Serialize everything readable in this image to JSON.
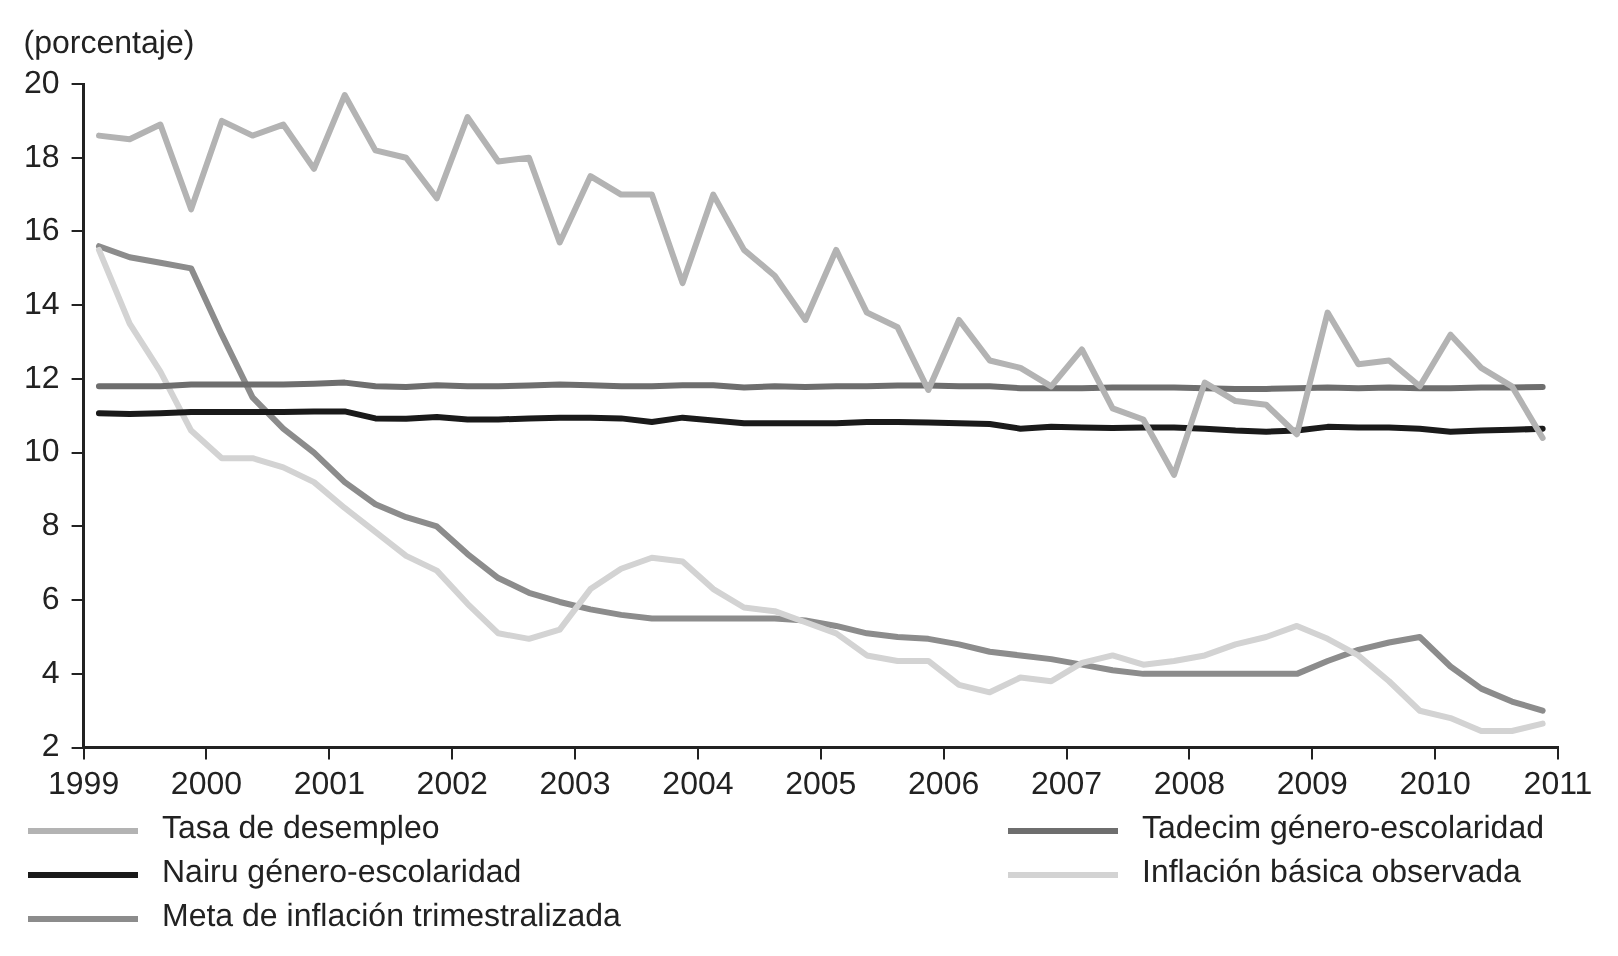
{
  "chart_data": {
    "type": "line",
    "ylabel": "(porcentaje)",
    "xlim": [
      1999,
      2011
    ],
    "xticks": [
      1999,
      2000,
      2001,
      2002,
      2003,
      2004,
      2005,
      2006,
      2007,
      2008,
      2009,
      2010,
      2011
    ],
    "ylim": [
      2,
      20
    ],
    "yticks": [
      2,
      4,
      6,
      8,
      10,
      12,
      14,
      16,
      18,
      20
    ],
    "grid": false,
    "legend": "bottom",
    "marker": "none",
    "line_style": "solid",
    "x": [
      1999.125,
      1999.375,
      1999.625,
      1999.875,
      2000.125,
      2000.375,
      2000.625,
      2000.875,
      2001.125,
      2001.375,
      2001.625,
      2001.875,
      2002.125,
      2002.375,
      2002.625,
      2002.875,
      2003.125,
      2003.375,
      2003.625,
      2003.875,
      2004.125,
      2004.375,
      2004.625,
      2004.875,
      2005.125,
      2005.375,
      2005.625,
      2005.875,
      2006.125,
      2006.375,
      2006.625,
      2006.875,
      2007.125,
      2007.375,
      2007.625,
      2007.875,
      2008.125,
      2008.375,
      2008.625,
      2008.875,
      2009.125,
      2009.375,
      2009.625,
      2009.875,
      2010.125,
      2010.375,
      2010.625,
      2010.875
    ],
    "series": [
      {
        "name": "Tasa de desempleo",
        "color": "#b3b3b3",
        "values": [
          18.6,
          18.5,
          18.9,
          16.6,
          19.0,
          18.6,
          18.9,
          17.7,
          19.7,
          18.2,
          18.0,
          16.9,
          19.1,
          17.9,
          18.0,
          15.7,
          17.5,
          17.0,
          17.0,
          14.6,
          17.0,
          15.5,
          14.8,
          13.6,
          15.5,
          13.8,
          13.4,
          11.7,
          13.6,
          12.5,
          12.3,
          11.8,
          12.8,
          11.2,
          10.9,
          9.4,
          11.9,
          11.4,
          11.3,
          10.5,
          13.8,
          12.4,
          12.5,
          11.8,
          13.2,
          12.3,
          11.8,
          10.4
        ]
      },
      {
        "name": "Tadecim género-escolaridad",
        "color": "#6e6e6e",
        "values": [
          11.8,
          11.8,
          11.8,
          11.85,
          11.85,
          11.85,
          11.85,
          11.87,
          11.9,
          11.8,
          11.78,
          11.83,
          11.8,
          11.8,
          11.82,
          11.85,
          11.83,
          11.8,
          11.8,
          11.83,
          11.83,
          11.77,
          11.8,
          11.78,
          11.8,
          11.8,
          11.82,
          11.82,
          11.8,
          11.8,
          11.75,
          11.75,
          11.75,
          11.77,
          11.77,
          11.77,
          11.75,
          11.73,
          11.73,
          11.75,
          11.77,
          11.75,
          11.77,
          11.75,
          11.75,
          11.77,
          11.77,
          11.78
        ]
      },
      {
        "name": "Nairu género-escolaridad",
        "color": "#1a1a1a",
        "values": [
          11.07,
          11.05,
          11.07,
          11.1,
          11.1,
          11.1,
          11.1,
          11.12,
          11.12,
          10.93,
          10.92,
          10.97,
          10.9,
          10.9,
          10.93,
          10.95,
          10.95,
          10.93,
          10.83,
          10.95,
          10.87,
          10.8,
          10.8,
          10.8,
          10.8,
          10.83,
          10.83,
          10.82,
          10.8,
          10.78,
          10.65,
          10.7,
          10.68,
          10.67,
          10.68,
          10.68,
          10.65,
          10.6,
          10.57,
          10.6,
          10.7,
          10.68,
          10.68,
          10.65,
          10.57,
          10.6,
          10.62,
          10.65
        ]
      },
      {
        "name": "Inflación básica observada",
        "color": "#d3d3d3",
        "values": [
          15.5,
          13.5,
          12.2,
          10.6,
          9.85,
          9.85,
          9.6,
          9.2,
          8.5,
          7.85,
          7.2,
          6.8,
          5.9,
          5.1,
          4.95,
          5.2,
          6.3,
          6.85,
          7.15,
          7.05,
          6.3,
          5.8,
          5.7,
          5.4,
          5.1,
          4.5,
          4.35,
          4.35,
          3.7,
          3.5,
          3.9,
          3.8,
          4.3,
          4.5,
          4.25,
          4.35,
          4.5,
          4.8,
          5.0,
          5.3,
          4.95,
          4.5,
          3.8,
          3.0,
          2.8,
          2.45,
          2.45,
          2.65
        ]
      },
      {
        "name": "Meta de inflación trimestralizada",
        "color": "#8c8c8c",
        "values": [
          15.6,
          15.3,
          15.15,
          15.0,
          13.2,
          11.5,
          10.65,
          10.0,
          9.2,
          8.6,
          8.25,
          8.0,
          7.25,
          6.6,
          6.2,
          5.95,
          5.75,
          5.6,
          5.5,
          5.5,
          5.5,
          5.5,
          5.5,
          5.45,
          5.3,
          5.1,
          5.0,
          4.95,
          4.8,
          4.6,
          4.5,
          4.4,
          4.25,
          4.1,
          4.0,
          4.0,
          4.0,
          4.0,
          4.0,
          4.0,
          4.35,
          4.65,
          4.85,
          5.0,
          4.2,
          3.6,
          3.25,
          3.0
        ]
      }
    ]
  }
}
